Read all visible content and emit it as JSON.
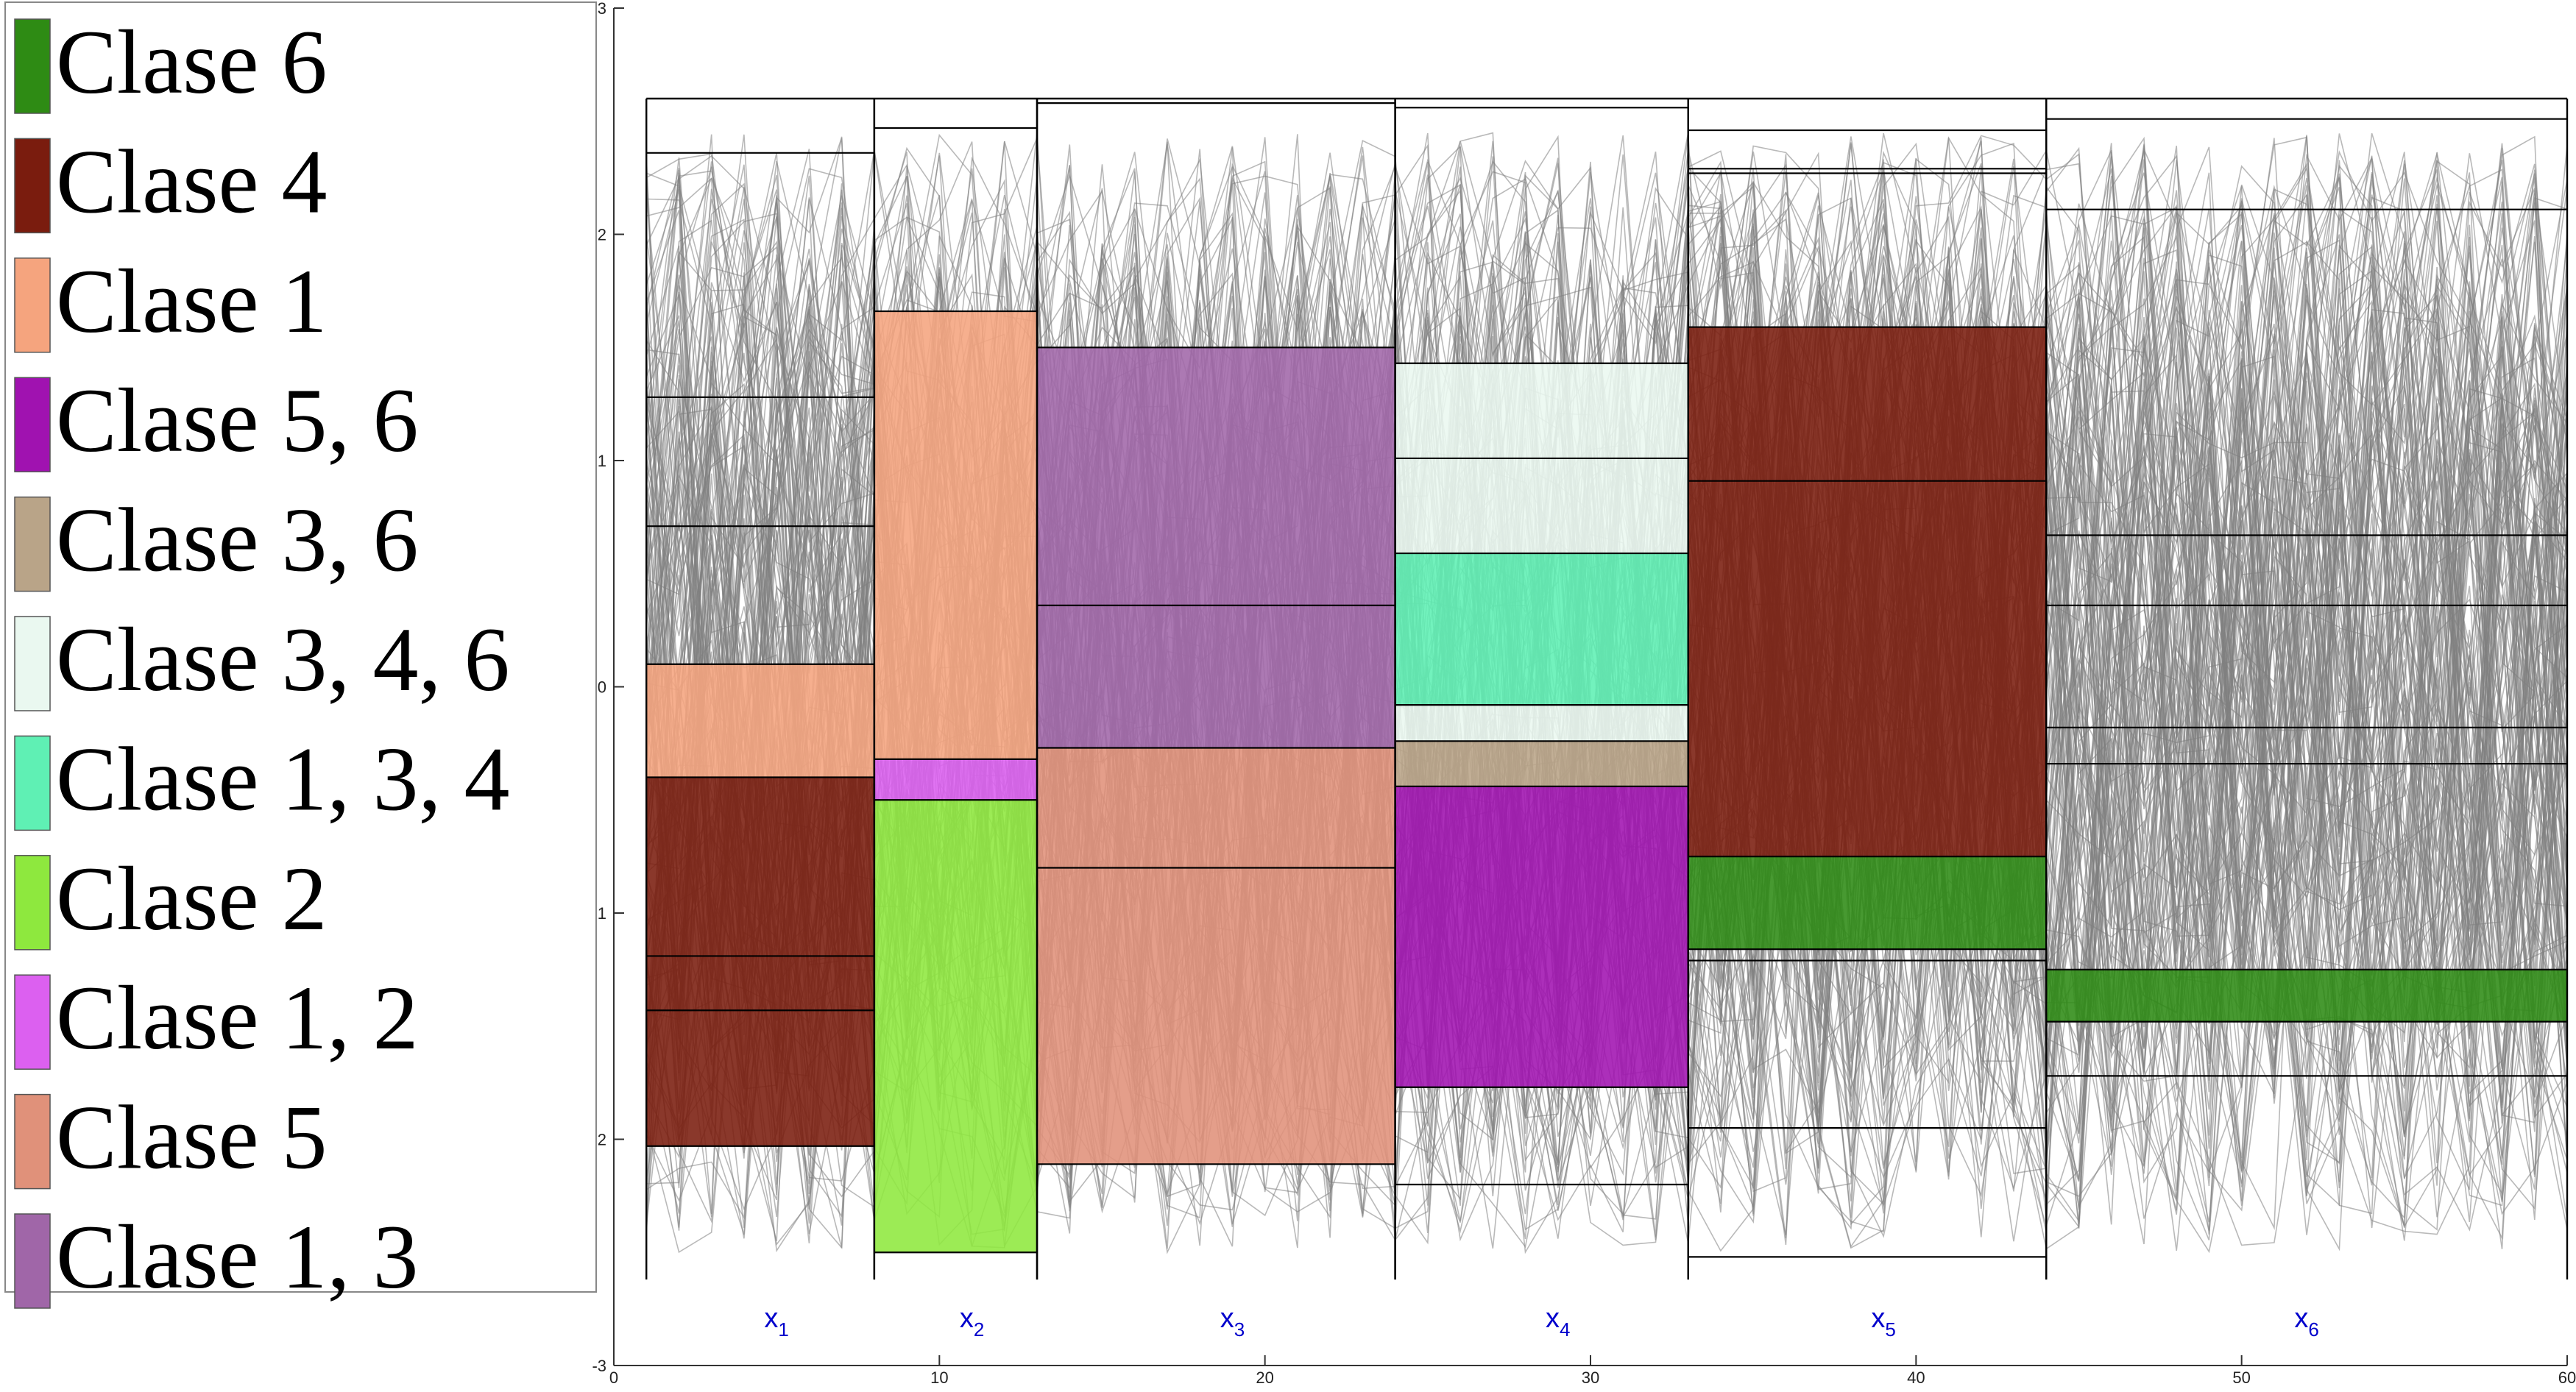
{
  "chart_data": {
    "type": "line",
    "xlim": [
      0,
      60
    ],
    "ylim": [
      -3,
      3
    ],
    "x_ticks": [
      0,
      10,
      20,
      30,
      40,
      50,
      60
    ],
    "y_ticks": [
      {
        "value": 3,
        "label": "3"
      },
      {
        "value": 2,
        "label": "2"
      },
      {
        "value": 1,
        "label": "1"
      },
      {
        "value": 0,
        "label": "0"
      },
      {
        "value": -1,
        "label": "1"
      },
      {
        "value": -2,
        "label": "2"
      },
      {
        "value": -3,
        "label": "-3"
      }
    ],
    "grid": false,
    "legend_position": "left",
    "line_color": "#808080",
    "axis_label_color": "#0000cc",
    "frame_top": 2.6,
    "frame_bottom": -2.62,
    "features": [
      {
        "label": "x",
        "sub": "1",
        "x_start": 1,
        "x_end": 8,
        "label_x": 5,
        "lines": [
          2.36,
          1.28,
          0.71,
          0.1,
          -0.4,
          -1.19,
          -1.43,
          -2.03
        ],
        "boxes": [
          {
            "class": "Clase 1",
            "top": 0.1,
            "bottom": -0.4
          },
          {
            "class": "Clase 4",
            "top": -0.4,
            "bottom": -2.03
          }
        ]
      },
      {
        "label": "x",
        "sub": "2",
        "x_start": 8,
        "x_end": 13,
        "label_x": 11,
        "lines": [
          2.47,
          1.66,
          -0.32,
          -0.5,
          -2.5
        ],
        "boxes": [
          {
            "class": "Clase 1",
            "top": 1.66,
            "bottom": -0.32
          },
          {
            "class": "Clase 1, 2",
            "top": -0.32,
            "bottom": -0.5
          },
          {
            "class": "Clase 2",
            "top": -0.5,
            "bottom": -2.5
          }
        ]
      },
      {
        "label": "x",
        "sub": "3",
        "x_start": 13,
        "x_end": 24,
        "label_x": 19,
        "lines": [
          2.58,
          1.5,
          0.36,
          -0.27,
          -0.8,
          -2.11
        ],
        "boxes": [
          {
            "class": "Clase 1, 3",
            "top": 1.5,
            "bottom": -0.27
          },
          {
            "class": "Clase 5",
            "top": -0.27,
            "bottom": -2.11
          }
        ]
      },
      {
        "label": "x",
        "sub": "4",
        "x_start": 24,
        "x_end": 33,
        "label_x": 29,
        "lines": [
          2.56,
          1.43,
          1.01,
          0.59,
          -0.08,
          -0.24,
          -0.44,
          -1.77,
          -2.2
        ],
        "boxes": [
          {
            "class": "Clase 3, 4, 6",
            "top": 1.43,
            "bottom": 0.59
          },
          {
            "class": "Clase 1, 3, 4",
            "top": 0.59,
            "bottom": -0.08
          },
          {
            "class": "Clase 3, 4, 6",
            "top": -0.08,
            "bottom": -0.24
          },
          {
            "class": "Clase 3, 6",
            "top": -0.24,
            "bottom": -0.44
          },
          {
            "class": "Clase 5, 6",
            "top": -0.44,
            "bottom": -1.77
          }
        ]
      },
      {
        "label": "x",
        "sub": "5",
        "x_start": 33,
        "x_end": 44,
        "label_x": 39,
        "lines": [
          2.46,
          2.29,
          2.27,
          1.59,
          0.91,
          -0.75,
          -1.16,
          -1.21,
          -1.95,
          -2.52
        ],
        "boxes": [
          {
            "class": "Clase 4",
            "top": 1.59,
            "bottom": -0.75
          },
          {
            "class": "Clase 6",
            "top": -0.75,
            "bottom": -1.16
          }
        ]
      },
      {
        "label": "x",
        "sub": "6",
        "x_start": 44,
        "x_end": 60,
        "label_x": 52,
        "lines": [
          2.51,
          2.11,
          0.67,
          0.36,
          -0.18,
          -0.34,
          -1.25,
          -1.48,
          -1.72
        ],
        "boxes": [
          {
            "class": "Clase 6",
            "top": -1.25,
            "bottom": -1.48
          }
        ]
      }
    ],
    "legend": [
      {
        "name": "Clase 6",
        "color": "#2e8b14"
      },
      {
        "name": "Clase 4",
        "color": "#7a1c0e"
      },
      {
        "name": "Clase 1",
        "color": "#f5a47e"
      },
      {
        "name": "Clase 5, 6",
        "color": "#a012b0"
      },
      {
        "name": "Clase 3, 6",
        "color": "#b9a488"
      },
      {
        "name": "Clase 3, 4, 6",
        "color": "#eaf8f0"
      },
      {
        "name": "Clase 1, 3, 4",
        "color": "#5ff0b4"
      },
      {
        "name": "Clase 2",
        "color": "#8ee83e"
      },
      {
        "name": "Clase 1, 2",
        "color": "#dc60f0"
      },
      {
        "name": "Clase 5",
        "color": "#e0917a"
      },
      {
        "name": "Clase 1, 3",
        "color": "#a066a8"
      }
    ]
  }
}
